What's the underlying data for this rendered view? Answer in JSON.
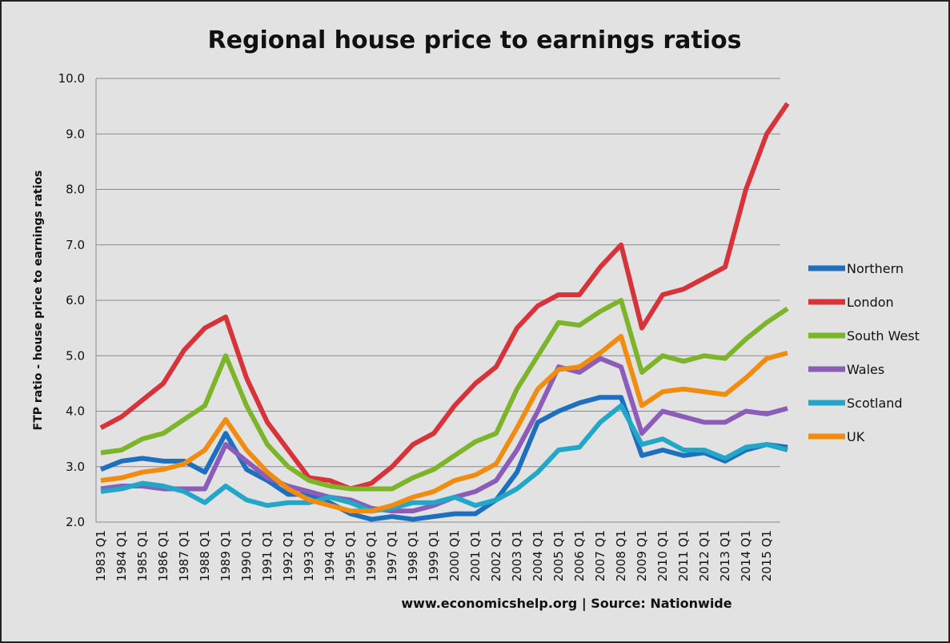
{
  "chart_data": {
    "type": "line",
    "title": "Regional house price to earnings ratios",
    "y_label": "FTP ratio - house price to earnings ratios",
    "source": "www.economicshelp.org | Source: Nationwide",
    "categories": [
      "1983 Q1",
      "1984 Q1",
      "1985 Q1",
      "1986 Q1",
      "1987 Q1",
      "1988 Q1",
      "1989 Q1",
      "1990 Q1",
      "1991 Q1",
      "1992 Q1",
      "1993 Q1",
      "1994 Q1",
      "1995 Q1",
      "1996 Q1",
      "1997 Q1",
      "1998 Q1",
      "1999 Q1",
      "2000 Q1",
      "2001 Q1",
      "2002 Q1",
      "2003 Q1",
      "2004 Q1",
      "2005 Q1",
      "2006 Q1",
      "2007 Q1",
      "2008 Q1",
      "2009 Q1",
      "2010 Q1",
      "2011 Q1",
      "2012 Q1",
      "2013 Q1",
      "2014 Q1",
      "2015 Q1",
      null
    ],
    "series": [
      {
        "name": "Northern",
        "color": "#1f6fbf",
        "values": [
          2.95,
          3.1,
          3.15,
          3.1,
          3.1,
          2.9,
          3.6,
          2.95,
          2.75,
          2.5,
          2.5,
          2.35,
          2.15,
          2.05,
          2.1,
          2.05,
          2.1,
          2.15,
          2.15,
          2.4,
          2.9,
          3.8,
          4.0,
          4.15,
          4.25,
          4.25,
          3.2,
          3.3,
          3.2,
          3.25,
          3.1,
          3.3,
          3.4,
          3.35
        ]
      },
      {
        "name": "London",
        "color": "#d6333a",
        "values": [
          3.7,
          3.9,
          4.2,
          4.5,
          5.1,
          5.5,
          5.7,
          4.6,
          3.8,
          3.3,
          2.8,
          2.75,
          2.6,
          2.7,
          3.0,
          3.4,
          3.6,
          4.1,
          4.5,
          4.8,
          5.5,
          5.9,
          6.1,
          6.1,
          6.6,
          7.0,
          5.5,
          6.1,
          6.2,
          6.4,
          6.6,
          8.0,
          9.0,
          9.55
        ]
      },
      {
        "name": "South West",
        "color": "#7cb52a",
        "values": [
          3.25,
          3.3,
          3.5,
          3.6,
          3.85,
          4.1,
          5.0,
          4.1,
          3.4,
          3.0,
          2.75,
          2.65,
          2.6,
          2.6,
          2.6,
          2.8,
          2.95,
          3.2,
          3.45,
          3.6,
          4.4,
          5.0,
          5.6,
          5.55,
          5.8,
          6.0,
          4.7,
          5.0,
          4.9,
          5.0,
          4.95,
          5.3,
          5.6,
          5.85
        ]
      },
      {
        "name": "Wales",
        "color": "#8b5cb8",
        "values": [
          2.6,
          2.65,
          2.65,
          2.6,
          2.6,
          2.6,
          3.4,
          3.1,
          2.8,
          2.65,
          2.55,
          2.45,
          2.4,
          2.25,
          2.2,
          2.2,
          2.3,
          2.45,
          2.55,
          2.75,
          3.3,
          4.0,
          4.8,
          4.7,
          4.95,
          4.8,
          3.6,
          4.0,
          3.9,
          3.8,
          3.8,
          4.0,
          3.95,
          4.05
        ]
      },
      {
        "name": "Scotland",
        "color": "#22a7c9",
        "values": [
          2.55,
          2.6,
          2.7,
          2.65,
          2.55,
          2.35,
          2.65,
          2.4,
          2.3,
          2.35,
          2.35,
          2.45,
          2.35,
          2.2,
          2.25,
          2.35,
          2.35,
          2.45,
          2.3,
          2.4,
          2.6,
          2.9,
          3.3,
          3.35,
          3.8,
          4.1,
          3.4,
          3.5,
          3.3,
          3.3,
          3.15,
          3.35,
          3.4,
          3.3
        ]
      },
      {
        "name": "UK",
        "color": "#f08c10",
        "values": [
          2.75,
          2.8,
          2.9,
          2.95,
          3.05,
          3.3,
          3.85,
          3.3,
          2.9,
          2.6,
          2.4,
          2.3,
          2.2,
          2.2,
          2.3,
          2.45,
          2.55,
          2.75,
          2.85,
          3.05,
          3.7,
          4.4,
          4.75,
          4.8,
          5.05,
          5.35,
          4.1,
          4.35,
          4.4,
          4.35,
          4.3,
          4.6,
          4.95,
          5.05
        ]
      }
    ],
    "ylim": [
      2,
      10
    ],
    "yticks": [
      {
        "value": 2,
        "label": "2.0"
      },
      {
        "value": 3,
        "label": "3.0"
      },
      {
        "value": 4,
        "label": "4.0"
      },
      {
        "value": 5,
        "label": "5.0"
      },
      {
        "value": 6,
        "label": "6.0"
      },
      {
        "value": 7,
        "label": "7.0"
      },
      {
        "value": 8,
        "label": "8.0"
      },
      {
        "value": 9,
        "label": "9.0"
      },
      {
        "value": 10,
        "label": "10.0"
      }
    ],
    "grid": true,
    "legend": "right"
  }
}
